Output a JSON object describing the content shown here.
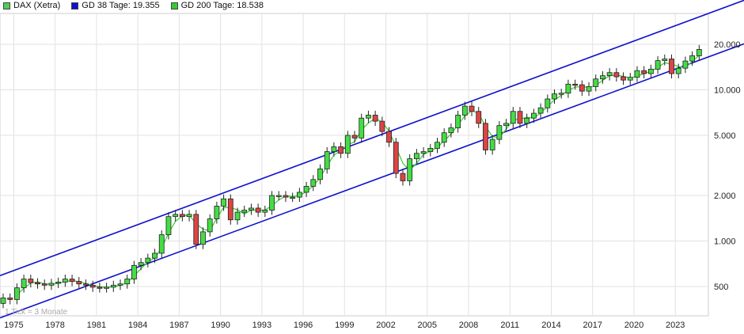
{
  "legend": {
    "items": [
      {
        "label": "DAX (Xetra)",
        "color": "#55cc55"
      },
      {
        "label": "GD 38 Tage: 19.355",
        "color": "#1111cc"
      },
      {
        "label": "GD 200 Tage: 18.538",
        "color": "#33cc33"
      }
    ]
  },
  "note": "1 Tick = 3 Monate",
  "chart_data": {
    "type": "candlestick",
    "y_scale": "log",
    "ylim": [
      320,
      32000
    ],
    "xlim": [
      1974.0,
      2025.4
    ],
    "grid": true,
    "x_ticks": [
      "1975",
      "1978",
      "1981",
      "1984",
      "1987",
      "1990",
      "1993",
      "1996",
      "1999",
      "2002",
      "2005",
      "2008",
      "2011",
      "2014",
      "2017",
      "2020",
      "2023"
    ],
    "y_ticks": [
      {
        "value": 500,
        "label": "500"
      },
      {
        "value": 1000,
        "label": "1.000"
      },
      {
        "value": 2000,
        "label": "2.000"
      },
      {
        "value": 5000,
        "label": "5.000"
      },
      {
        "value": 10000,
        "label": "10.000"
      },
      {
        "value": 20000,
        "label": "20.000"
      }
    ],
    "series": [
      {
        "name": "DAX (Xetra)",
        "type": "candles",
        "up_color": "#44dd44",
        "down_color": "#dd4444",
        "x": [
          1974.0,
          1974.5,
          1975.0,
          1975.5,
          1976.0,
          1976.5,
          1977.0,
          1977.5,
          1978.0,
          1978.5,
          1979.0,
          1979.5,
          1980.0,
          1980.5,
          1981.0,
          1981.5,
          1982.0,
          1982.5,
          1983.0,
          1983.5,
          1984.0,
          1984.5,
          1985.0,
          1985.5,
          1986.0,
          1986.5,
          1987.0,
          1987.5,
          1988.0,
          1988.5,
          1989.0,
          1989.5,
          1990.0,
          1990.5,
          1991.0,
          1991.5,
          1992.0,
          1992.5,
          1993.0,
          1993.5,
          1994.0,
          1994.5,
          1995.0,
          1995.5,
          1996.0,
          1996.5,
          1997.0,
          1997.5,
          1998.0,
          1998.5,
          1999.0,
          1999.5,
          2000.0,
          2000.5,
          2001.0,
          2001.5,
          2002.0,
          2002.5,
          2003.0,
          2003.5,
          2004.0,
          2004.5,
          2005.0,
          2005.5,
          2006.0,
          2006.5,
          2007.0,
          2007.5,
          2008.0,
          2008.5,
          2009.0,
          2009.5,
          2010.0,
          2010.5,
          2011.0,
          2011.5,
          2012.0,
          2012.5,
          2013.0,
          2013.5,
          2014.0,
          2014.5,
          2015.0,
          2015.5,
          2016.0,
          2016.5,
          2017.0,
          2017.5,
          2018.0,
          2018.5,
          2019.0,
          2019.5,
          2020.0,
          2020.5,
          2021.0,
          2021.5,
          2022.0,
          2022.5,
          2023.0,
          2023.5,
          2024.0,
          2024.5
        ],
        "close": [
          420,
          410,
          490,
          560,
          530,
          520,
          510,
          525,
          535,
          560,
          540,
          520,
          510,
          495,
          490,
          495,
          510,
          520,
          560,
          690,
          720,
          770,
          830,
          1100,
          1450,
          1500,
          1450,
          1500,
          950,
          1150,
          1400,
          1700,
          1900,
          1380,
          1550,
          1600,
          1650,
          1550,
          1600,
          2000,
          2000,
          1950,
          1950,
          2100,
          2300,
          2550,
          3000,
          3900,
          4200,
          3800,
          5000,
          4800,
          6500,
          6800,
          6200,
          5300,
          4500,
          2800,
          2500,
          3500,
          3800,
          3900,
          4100,
          4500,
          5200,
          5600,
          6800,
          7800,
          7200,
          6000,
          4000,
          4700,
          5800,
          6000,
          7200,
          6000,
          6500,
          7000,
          7600,
          8700,
          9400,
          9500,
          10900,
          10800,
          9800,
          10500,
          11800,
          12400,
          13000,
          12200,
          11600,
          12100,
          13400,
          12800,
          13700,
          15600,
          16000,
          12800,
          13900,
          15500,
          16800,
          18500
        ]
      },
      {
        "name": "GD 38 Tage",
        "type": "line",
        "color": "#1111cc"
      },
      {
        "name": "GD 200 Tage",
        "type": "line",
        "color": "#33cc33"
      }
    ],
    "trend_channel": {
      "color": "#1111cc",
      "upper": [
        {
          "x": 1974.0,
          "y": 590
        },
        {
          "x": 2025.4,
          "y": 32000
        }
      ],
      "lower": [
        {
          "x": 1974.0,
          "y": 310
        },
        {
          "x": 2025.4,
          "y": 16500
        }
      ]
    }
  }
}
